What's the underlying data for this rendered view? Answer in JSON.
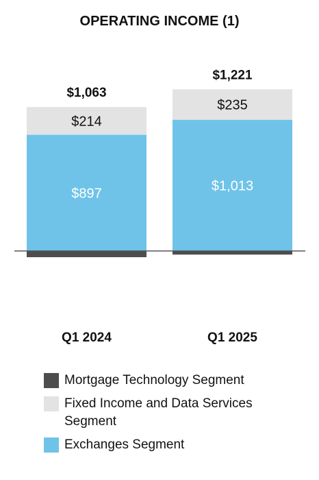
{
  "chart_data": {
    "type": "bar",
    "stacked": true,
    "title": "OPERATING INCOME (1)",
    "categories": [
      "Q1 2024",
      "Q1 2025"
    ],
    "series": [
      {
        "name": "Mortgage Technology Segment",
        "color": "#4d4d4d",
        "values": [
          -48,
          -28
        ],
        "labels": [
          "",
          ""
        ]
      },
      {
        "name": "Exchanges Segment",
        "color": "#6fc3e8",
        "values": [
          897,
          1013
        ],
        "labels": [
          "$897",
          "$1,013"
        ]
      },
      {
        "name": "Fixed Income and Data Services Segment",
        "color": "#e3e3e3",
        "values": [
          214,
          235
        ],
        "labels": [
          "$214",
          "$235"
        ]
      }
    ],
    "totals": [
      "$1,063",
      "$1,221"
    ],
    "ylim": [
      -60,
      1300
    ],
    "grid": false,
    "baseline_color": "#555555"
  },
  "legend": {
    "items": [
      {
        "label": "Mortgage Technology Segment",
        "color": "#4d4d4d"
      },
      {
        "label": "Fixed Income and Data Services Segment",
        "color": "#e3e3e3"
      },
      {
        "label": "Exchanges Segment",
        "color": "#6fc3e8"
      }
    ]
  }
}
